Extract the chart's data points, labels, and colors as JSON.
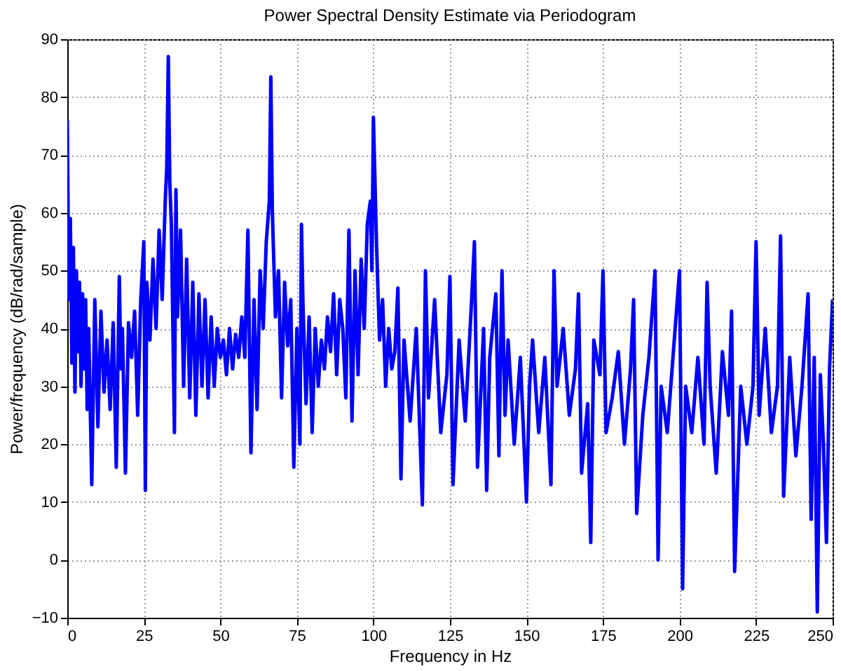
{
  "chart_data": {
    "type": "line",
    "title": "Power Spectral Density Estimate via Periodogram",
    "xlabel": "Frequency in Hz",
    "ylabel": "Power/frequency (dB/rad/sample)",
    "xlim": [
      0,
      250
    ],
    "ylim": [
      -10,
      90
    ],
    "xticks": [
      0,
      25,
      50,
      75,
      100,
      125,
      150,
      175,
      200,
      225,
      250
    ],
    "yticks": [
      -10,
      0,
      10,
      20,
      30,
      40,
      50,
      60,
      70,
      80,
      90
    ],
    "grid": true,
    "series": [
      {
        "color": "#0000ff",
        "x": [
          0,
          0.5,
          1,
          1.5,
          2,
          2.5,
          3,
          3.5,
          4,
          4.5,
          5,
          5.5,
          6,
          6.5,
          7,
          8,
          9,
          10,
          11,
          12,
          13,
          14,
          15,
          16,
          17,
          17.5,
          18,
          19,
          20,
          21,
          22,
          23,
          24,
          25,
          25.5,
          26,
          27,
          28,
          29,
          30,
          31,
          32,
          32.5,
          33,
          33.5,
          34,
          35,
          35.5,
          36,
          37,
          38,
          39,
          40,
          41,
          42,
          43,
          44,
          45,
          46,
          47,
          48,
          49,
          50,
          51,
          52,
          53,
          54,
          55,
          56,
          57,
          58,
          59,
          60,
          61,
          62,
          63,
          64,
          65,
          66,
          66.5,
          67,
          68,
          69,
          70,
          71,
          72,
          73,
          74,
          75,
          76,
          76.5,
          77,
          78,
          79,
          80,
          81,
          82,
          83,
          84,
          85,
          86,
          87,
          88,
          89,
          90,
          91,
          92,
          93,
          94,
          95,
          96,
          97,
          98,
          99,
          99.5,
          100,
          101,
          102,
          103,
          104,
          105,
          106,
          107,
          108,
          109,
          110,
          112,
          114,
          116,
          117,
          118,
          120,
          122,
          124,
          125,
          126,
          128,
          130,
          132,
          133,
          134,
          136,
          137,
          138,
          140,
          141,
          142,
          143,
          144,
          146,
          148,
          150,
          151,
          152,
          154,
          156,
          158,
          159,
          160,
          162,
          164,
          166,
          167,
          168,
          170,
          171,
          172,
          174,
          175,
          176,
          178,
          180,
          182,
          184,
          185,
          186,
          188,
          190,
          192,
          193,
          194,
          196,
          198,
          200,
          201,
          202,
          204,
          206,
          208,
          209,
          210,
          212,
          214,
          216,
          217,
          218,
          220,
          222,
          224,
          225,
          226,
          228,
          230,
          232,
          233,
          234,
          236,
          238,
          240,
          242,
          243,
          244,
          245,
          246,
          247,
          248,
          249,
          250
        ],
        "values": [
          76,
          45,
          59,
          34,
          54,
          29,
          50,
          36,
          48,
          30,
          46,
          33,
          45,
          26,
          40,
          13,
          45,
          23,
          43,
          29,
          38,
          26,
          41,
          16,
          49,
          33,
          40,
          15,
          41,
          35,
          43,
          25,
          45,
          55,
          12,
          48,
          38,
          52,
          40,
          57,
          45,
          62,
          68,
          87,
          65,
          58,
          22,
          64,
          42,
          57,
          30,
          52,
          28,
          48,
          25,
          46,
          30,
          45,
          28,
          42,
          30,
          40,
          35,
          38,
          32,
          40,
          33,
          39,
          35,
          42,
          35,
          57,
          18.5,
          45,
          26,
          50,
          40,
          55,
          62,
          83.5,
          60,
          42,
          50,
          28,
          48,
          37,
          45,
          16,
          40,
          20,
          58,
          44,
          27,
          42,
          22,
          40,
          30,
          38,
          33,
          42,
          36,
          46,
          32,
          45,
          40,
          28,
          57,
          24,
          50,
          32,
          52,
          40,
          58,
          62,
          50,
          76.5,
          55,
          38,
          45,
          30,
          40,
          33,
          36,
          47,
          14,
          38,
          24,
          40,
          9.5,
          50,
          28,
          45,
          22,
          32,
          49,
          13,
          38,
          24,
          44,
          55,
          16,
          40,
          12,
          35,
          46,
          18,
          50,
          25,
          38,
          20,
          35,
          10,
          30,
          38,
          22,
          35,
          13,
          50,
          30,
          40,
          25,
          33,
          46,
          15,
          27,
          3,
          38,
          32,
          50,
          22,
          28,
          36,
          20,
          33,
          45,
          8,
          25,
          35,
          50,
          0,
          30,
          22,
          36,
          50,
          -5,
          30,
          22,
          35,
          20,
          48,
          30,
          15,
          36,
          25,
          43,
          -2,
          30,
          20,
          30,
          55,
          25,
          40,
          22,
          30,
          56,
          11,
          35,
          18,
          30,
          46,
          7,
          35,
          -9,
          32,
          20,
          3,
          33,
          45
        ]
      }
    ]
  }
}
